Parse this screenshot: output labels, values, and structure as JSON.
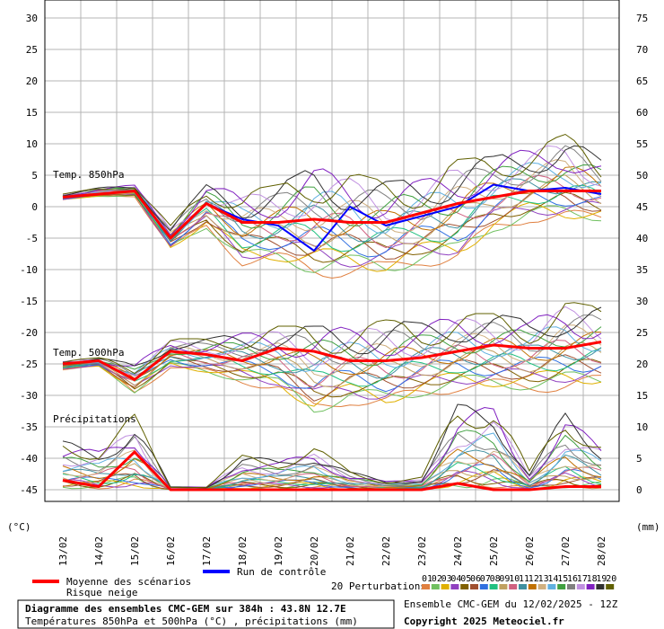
{
  "chart_data": {
    "type": "line",
    "x_dates": [
      "13/02",
      "14/02",
      "15/02",
      "16/02",
      "17/02",
      "18/02",
      "19/02",
      "20/02",
      "21/02",
      "22/02",
      "23/02",
      "24/02",
      "25/02",
      "26/02",
      "27/02",
      "28/02"
    ],
    "y_left_ticks": [
      30,
      25,
      20,
      15,
      10,
      5,
      0,
      -5,
      -10,
      -15,
      -20,
      -25,
      -30,
      -35,
      -40,
      -45
    ],
    "y_right_ticks": [
      75,
      70,
      65,
      60,
      55,
      50,
      45,
      40,
      35,
      30,
      25,
      20,
      15,
      10,
      5,
      0
    ],
    "left_unit": "(°C)",
    "right_unit": "(mm)",
    "panel_labels": {
      "t850": "Temp. 850hPa",
      "t500": "Temp. 500hPa",
      "precip": "Précipitations"
    },
    "grid": true,
    "t850": {
      "mean": [
        1.5,
        2.0,
        2.5,
        -5.0,
        0.5,
        -2.5,
        -2.5,
        -2.0,
        -2.5,
        -2.5,
        -1.0,
        0.5,
        1.5,
        2.5,
        2.5,
        2.5
      ],
      "control": [
        1.5,
        2.0,
        2.5,
        -5.0,
        0.5,
        -2.0,
        -3.0,
        -7.0,
        0.0,
        -3.0,
        -1.5,
        0.0,
        3.5,
        2.5,
        3.0,
        2.0
      ],
      "perturbation_min": [
        1.0,
        1.5,
        1.5,
        -7.0,
        -4.0,
        -10.0,
        -10.0,
        -12.0,
        -12.0,
        -12.0,
        -10.0,
        -10.0,
        -5.0,
        -3.0,
        -3.5,
        -3.0
      ],
      "perturbation_max": [
        2.0,
        3.0,
        3.5,
        -3.0,
        3.5,
        2.5,
        3.5,
        6.5,
        5.5,
        4.0,
        4.5,
        7.5,
        8.0,
        9.5,
        11.5,
        7.5
      ]
    },
    "t500": {
      "mean": [
        -25.0,
        -24.5,
        -27.5,
        -23.0,
        -23.5,
        -24.5,
        -22.5,
        -23.0,
        -24.5,
        -24.5,
        -24.0,
        -23.0,
        -22.0,
        -22.5,
        -22.5,
        -21.5
      ],
      "control": [
        -25.0,
        -24.5,
        -27.5,
        -23.0,
        -23.5,
        -24.5,
        -22.5,
        -23.0,
        -24.5,
        -24.5,
        -24.0,
        -23.0,
        -22.0,
        -22.5,
        -22.5,
        -21.5
      ],
      "perturbation_min": [
        -26.0,
        -25.5,
        -30.0,
        -26.0,
        -27.0,
        -28.5,
        -30.0,
        -34.0,
        -32.0,
        -33.0,
        -31.0,
        -30.0,
        -30.0,
        -30.0,
        -30.0,
        -29.5
      ],
      "perturbation_max": [
        -24.5,
        -24.0,
        -25.0,
        -21.0,
        -21.0,
        -20.0,
        -19.0,
        -19.0,
        -19.0,
        -18.0,
        -18.5,
        -17.0,
        -17.0,
        -18.0,
        -15.0,
        -16.0
      ]
    },
    "precip_mm": {
      "mean": [
        1.5,
        0.5,
        6.0,
        0.0,
        0.0,
        0.0,
        0.0,
        0.0,
        0.0,
        0.0,
        0.0,
        1.0,
        0.0,
        0.0,
        0.5,
        0.5
      ],
      "perturbation_max": [
        8.0,
        7.0,
        12.0,
        0.5,
        0.5,
        5.5,
        5.0,
        7.0,
        3.0,
        1.5,
        2.0,
        14.0,
        15.0,
        3.0,
        13.0,
        8.0
      ]
    }
  },
  "legend": {
    "mean_label": "Moyenne des scénarios",
    "snow_label": "Risque neige",
    "control_label": "Run de contrôle",
    "perturbations_label": "20 Perturbations",
    "perturbation_ids": [
      "01",
      "02",
      "03",
      "04",
      "05",
      "06",
      "07",
      "08",
      "09",
      "10",
      "11",
      "12",
      "13",
      "14",
      "15",
      "16",
      "17",
      "18",
      "19",
      "20"
    ],
    "perturbation_colors": [
      "#e08040",
      "#70c060",
      "#e0b000",
      "#9040c0",
      "#806000",
      "#a05030",
      "#3070e0",
      "#20c080",
      "#c0a060",
      "#d06080",
      "#4090a0",
      "#c07000",
      "#d0b080",
      "#60b0e0",
      "#40a040",
      "#808080",
      "#c090e0",
      "#8020c0",
      "#303030",
      "#606000"
    ],
    "mean_color": "#ff0000",
    "control_color": "#0000ff"
  },
  "footer": {
    "title": "Diagramme des ensembles CMC-GEM sur 384h : 43.8N 12.7E",
    "subtitle": "Températures 850hPa et 500hPa (°C) , précipitations (mm)",
    "run_info": "Ensemble CMC-GEM du 12/02/2025 - 12Z",
    "copyright": "Copyright 2025 Meteociel.fr"
  }
}
